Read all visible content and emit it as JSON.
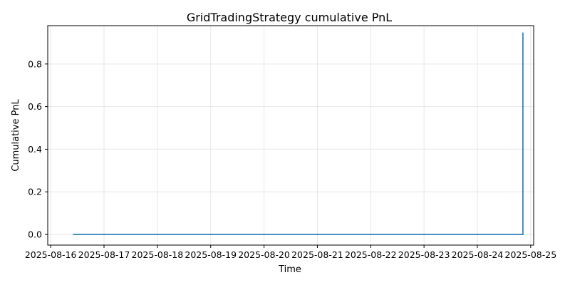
{
  "chart_data": {
    "type": "line",
    "title": "GridTradingStrategy cumulative PnL",
    "xlabel": "Time",
    "ylabel": "Cumulative PnL",
    "x_ticks": [
      "2025-08-16",
      "2025-08-17",
      "2025-08-18",
      "2025-08-19",
      "2025-08-20",
      "2025-08-21",
      "2025-08-22",
      "2025-08-23",
      "2025-08-24",
      "2025-08-25"
    ],
    "y_ticks": [
      "0.0",
      "0.2",
      "0.4",
      "0.6",
      "0.8"
    ],
    "ylim": [
      -0.05,
      0.98
    ],
    "xlim": [
      "2025-08-15 22:40",
      "2025-08-25 01:20"
    ],
    "grid": true,
    "series": [
      {
        "color": "#1f77b4",
        "x": [
          "2025-08-16 10:00",
          "2025-08-24 20:30",
          "2025-08-24 20:30",
          "2025-08-24 20:30"
        ],
        "y": [
          0.0,
          0.0,
          0.948,
          0.948
        ]
      }
    ]
  }
}
